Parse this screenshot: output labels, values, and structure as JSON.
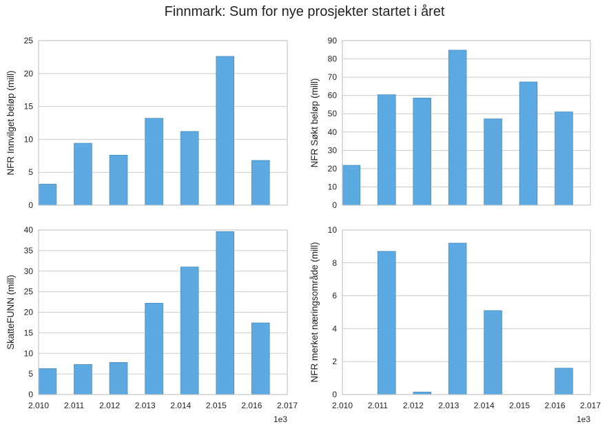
{
  "title": "Finnmark: Sum for nye prosjekter startet i året",
  "colors": {
    "bar": "#5DA9E1",
    "bar_edge": "#4A8CBF",
    "grid": "#CCCCCC",
    "frame": "#BBBBBB"
  },
  "x_offset_text": "1e3",
  "chart_data": [
    {
      "type": "bar",
      "ylabel": "NFR Innvilget beløp (mill)",
      "x": [
        2010,
        2011,
        2012,
        2013,
        2014,
        2015,
        2016
      ],
      "values": [
        3.2,
        9.4,
        7.6,
        13.2,
        11.2,
        22.6,
        6.8
      ],
      "xlim": [
        2010,
        2017
      ],
      "ylim": [
        0,
        25
      ],
      "yticks": [
        0,
        5,
        10,
        15,
        20,
        25
      ],
      "xticks": [],
      "grid": true
    },
    {
      "type": "bar",
      "ylabel": "NFR Søkt beløp (mill)",
      "x": [
        2010,
        2011,
        2012,
        2013,
        2014,
        2015,
        2016
      ],
      "values": [
        21.8,
        60.4,
        58.6,
        84.8,
        47.2,
        67.4,
        51.0
      ],
      "xlim": [
        2010,
        2017
      ],
      "ylim": [
        0,
        90
      ],
      "yticks": [
        0,
        10,
        20,
        30,
        40,
        50,
        60,
        70,
        80,
        90
      ],
      "xticks": [],
      "grid": true
    },
    {
      "type": "bar",
      "ylabel": "SkatteFUNN (mill)",
      "x": [
        2010,
        2011,
        2012,
        2013,
        2014,
        2015,
        2016
      ],
      "values": [
        6.3,
        7.3,
        7.8,
        22.2,
        31.0,
        39.6,
        17.4
      ],
      "xlim": [
        2010,
        2017
      ],
      "ylim": [
        0,
        40
      ],
      "yticks": [
        0,
        5,
        10,
        15,
        20,
        25,
        30,
        35,
        40
      ],
      "xticks": [
        "2.010",
        "2.011",
        "2.012",
        "2.013",
        "2.014",
        "2.015",
        "2.016",
        "2.017"
      ],
      "grid": true
    },
    {
      "type": "bar",
      "ylabel": "NFR merket næringsområde (mill)",
      "x": [
        2010,
        2011,
        2012,
        2013,
        2014,
        2015,
        2016
      ],
      "values": [
        0,
        8.7,
        0.15,
        9.2,
        5.1,
        0,
        1.6
      ],
      "xlim": [
        2010,
        2017
      ],
      "ylim": [
        0,
        10
      ],
      "yticks": [
        0,
        2,
        4,
        6,
        8,
        10
      ],
      "xticks": [
        "2.010",
        "2.011",
        "2.012",
        "2.013",
        "2.014",
        "2.015",
        "2.016",
        "2.017"
      ],
      "grid": true
    }
  ]
}
